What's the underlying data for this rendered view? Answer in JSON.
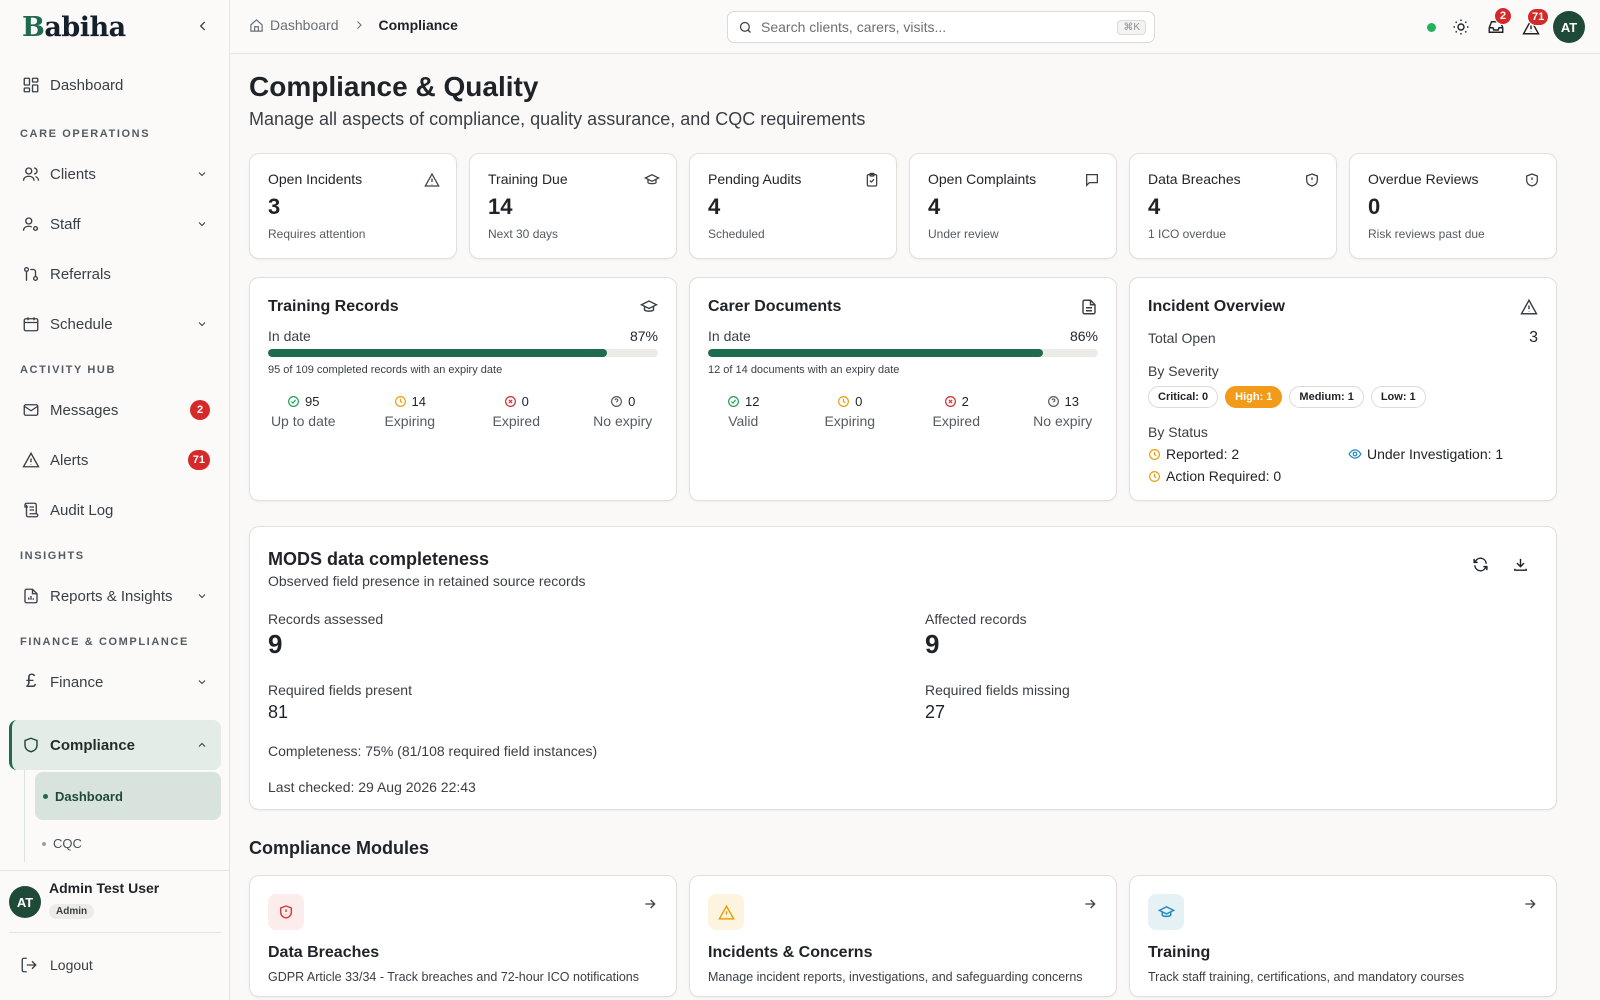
{
  "brand": {
    "first_letter": "B",
    "rest": "abiha"
  },
  "sidebar": {
    "dashboard": "Dashboard",
    "sections": {
      "care": "CARE OPERATIONS",
      "activity": "ACTIVITY HUB",
      "insights": "INSIGHTS",
      "finance": "FINANCE & COMPLIANCE"
    },
    "items": {
      "clients": "Clients",
      "staff": "Staff",
      "referrals": "Referrals",
      "schedule": "Schedule",
      "messages": "Messages",
      "messages_badge": "2",
      "alerts": "Alerts",
      "alerts_badge": "71",
      "audit_log": "Audit Log",
      "reports": "Reports & Insights",
      "finance": "Finance",
      "compliance": "Compliance",
      "sub_dashboard": "Dashboard",
      "sub_cqc": "CQC"
    },
    "user": {
      "initials": "AT",
      "name": "Admin Test User",
      "role": "Admin"
    },
    "logout": "Logout"
  },
  "header": {
    "breadcrumb_home": "Dashboard",
    "breadcrumb_current": "Compliance",
    "search_placeholder": "Search clients, carers, visits...",
    "search_shortcut": "⌘K",
    "messages_badge": "2",
    "alerts_badge": "71",
    "avatar_initials": "AT"
  },
  "page": {
    "title": "Compliance & Quality",
    "subtitle": "Manage all aspects of compliance, quality assurance, and CQC requirements"
  },
  "stats": [
    {
      "title": "Open Incidents",
      "value": "3",
      "note": "Requires attention",
      "icon": "warning-icon"
    },
    {
      "title": "Training Due",
      "value": "14",
      "note": "Next 30 days",
      "icon": "graduation-cap-icon"
    },
    {
      "title": "Pending Audits",
      "value": "4",
      "note": "Scheduled",
      "icon": "clipboard-icon"
    },
    {
      "title": "Open Complaints",
      "value": "4",
      "note": "Under review",
      "icon": "message-icon"
    },
    {
      "title": "Data Breaches",
      "value": "4",
      "note": "1 ICO overdue",
      "icon": "shield-icon"
    },
    {
      "title": "Overdue Reviews",
      "value": "0",
      "note": "Risk reviews past due",
      "icon": "shield-icon"
    }
  ],
  "training_records": {
    "title": "Training Records",
    "in_date_label": "In date",
    "percent_label": "87%",
    "percent": 87,
    "desc": "95 of 109 completed records with an expiry date",
    "stats": [
      {
        "value": "95",
        "label": "Up to date"
      },
      {
        "value": "14",
        "label": "Expiring"
      },
      {
        "value": "0",
        "label": "Expired"
      },
      {
        "value": "0",
        "label": "No expiry"
      }
    ]
  },
  "carer_documents": {
    "title": "Carer Documents",
    "in_date_label": "In date",
    "percent_label": "86%",
    "percent": 86,
    "desc": "12 of 14 documents with an expiry date",
    "stats": [
      {
        "value": "12",
        "label": "Valid"
      },
      {
        "value": "0",
        "label": "Expiring"
      },
      {
        "value": "2",
        "label": "Expired"
      },
      {
        "value": "13",
        "label": "No expiry"
      }
    ]
  },
  "incident_overview": {
    "title": "Incident Overview",
    "total_label": "Total Open",
    "total_value": "3",
    "severity_label": "By Severity",
    "severities": [
      "Critical: 0",
      "High: 1",
      "Medium: 1",
      "Low: 1"
    ],
    "status_label": "By Status",
    "reported": "Reported: 2",
    "investigation": "Under Investigation: 1",
    "action": "Action Required: 0"
  },
  "mods": {
    "title": "MODS data completeness",
    "subtitle": "Observed field presence in retained source records",
    "records_assessed_label": "Records assessed",
    "records_assessed": "9",
    "affected_label": "Affected records",
    "affected": "9",
    "present_label": "Required fields present",
    "present": "81",
    "missing_label": "Required fields missing",
    "missing": "27",
    "completeness": "Completeness: 75% (81/108 required field instances)",
    "last_checked": "Last checked: 29 Aug 2026 22:43"
  },
  "modules": {
    "title": "Compliance Modules",
    "items": [
      {
        "title": "Data Breaches",
        "desc": "GDPR Article 33/34 - Track breaches and 72-hour ICO notifications",
        "icon": "shield-icon",
        "color": "#fdecec"
      },
      {
        "title": "Incidents & Concerns",
        "desc": "Manage incident reports, investigations, and safeguarding concerns",
        "icon": "warning-icon",
        "color": "#fdf4e0"
      },
      {
        "title": "Training",
        "desc": "Track staff training, certifications, and mandatory courses",
        "icon": "graduation-cap-icon",
        "color": "#e6f1f6"
      }
    ]
  }
}
